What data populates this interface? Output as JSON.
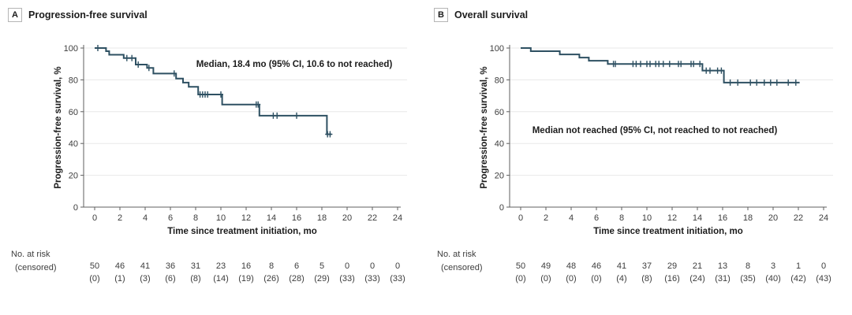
{
  "colors": {
    "curve": "#2e5062",
    "grid": "#e8e8e8",
    "axis": "#5f5f5f",
    "text": "#3d3d3d",
    "title": "#1c1c1c",
    "panel_box_border": "#b5b5b5",
    "background": "#ffffff"
  },
  "chart_data": [
    {
      "type": "line",
      "subtype": "kaplan-meier-step",
      "panel_label": "A",
      "title": "Progression-free survival",
      "annotation": "Median, 18.4 mo (95% CI, 10.6 to not reached)",
      "xlabel": "Time since treatment initiation, mo",
      "ylabel": "Progression-free survival, %",
      "xlim": [
        0,
        24
      ],
      "ylim": [
        0,
        100
      ],
      "xticks": [
        0,
        2,
        4,
        6,
        8,
        10,
        12,
        14,
        16,
        18,
        20,
        22,
        24
      ],
      "yticks": [
        0,
        20,
        40,
        60,
        80,
        100
      ],
      "grid": "horizontal",
      "legend_position": "none",
      "steps": [
        [
          0,
          100
        ],
        [
          0.9,
          98
        ],
        [
          1.15,
          95.8
        ],
        [
          2.3,
          93.7
        ],
        [
          3.25,
          89.6
        ],
        [
          4.15,
          87.5
        ],
        [
          4.65,
          84
        ],
        [
          6.45,
          80.8
        ],
        [
          7.0,
          78.3
        ],
        [
          7.45,
          75.6
        ],
        [
          8.2,
          70.8
        ],
        [
          10.1,
          64.5
        ],
        [
          13.05,
          57.5
        ],
        [
          18.4,
          45.8
        ]
      ],
      "end_time": 18.75,
      "censors": [
        [
          0.25,
          100
        ],
        [
          2.55,
          93.7
        ],
        [
          2.95,
          93.7
        ],
        [
          3.45,
          89.6
        ],
        [
          4.3,
          87.5
        ],
        [
          6.3,
          84
        ],
        [
          8.35,
          70.8
        ],
        [
          8.55,
          70.8
        ],
        [
          8.75,
          70.8
        ],
        [
          8.95,
          70.8
        ],
        [
          10.0,
          70.8
        ],
        [
          12.8,
          64.5
        ],
        [
          12.95,
          64.5
        ],
        [
          14.15,
          57.5
        ],
        [
          14.45,
          57.5
        ],
        [
          16.0,
          57.5
        ],
        [
          18.45,
          45.8
        ],
        [
          18.65,
          45.8
        ]
      ],
      "risk": {
        "label_line1": "No. at risk",
        "label_line2": "(censored)",
        "times": [
          0,
          2,
          4,
          6,
          8,
          10,
          12,
          14,
          16,
          18,
          20,
          22,
          24
        ],
        "at_risk": [
          50,
          46,
          41,
          36,
          31,
          23,
          16,
          8,
          6,
          5,
          0,
          0,
          0
        ],
        "censored": [
          0,
          1,
          3,
          6,
          8,
          14,
          19,
          26,
          28,
          29,
          33,
          33,
          33
        ]
      }
    },
    {
      "type": "line",
      "subtype": "kaplan-meier-step",
      "panel_label": "B",
      "title": "Overall survival",
      "annotation": "Median not reached (95% CI, not reached to not reached)",
      "xlabel": "Time since treatment initiation, mo",
      "ylabel": "Progression-free survival, %",
      "xlim": [
        0,
        24
      ],
      "ylim": [
        0,
        100
      ],
      "xticks": [
        0,
        2,
        4,
        6,
        8,
        10,
        12,
        14,
        16,
        18,
        20,
        22,
        24
      ],
      "yticks": [
        0,
        20,
        40,
        60,
        80,
        100
      ],
      "grid": "horizontal",
      "legend_position": "none",
      "steps": [
        [
          0,
          100
        ],
        [
          0.8,
          98
        ],
        [
          3.1,
          96
        ],
        [
          4.65,
          94
        ],
        [
          5.4,
          92
        ],
        [
          6.9,
          90
        ],
        [
          14.4,
          85.8
        ],
        [
          16.1,
          78.3
        ]
      ],
      "end_time": 22.1,
      "censors": [
        [
          7.35,
          90
        ],
        [
          7.5,
          90
        ],
        [
          8.9,
          90
        ],
        [
          9.15,
          90
        ],
        [
          9.5,
          90
        ],
        [
          10.0,
          90
        ],
        [
          10.25,
          90
        ],
        [
          10.7,
          90
        ],
        [
          10.95,
          90
        ],
        [
          11.3,
          90
        ],
        [
          11.8,
          90
        ],
        [
          12.5,
          90
        ],
        [
          12.7,
          90
        ],
        [
          13.5,
          90
        ],
        [
          13.7,
          90
        ],
        [
          14.2,
          90
        ],
        [
          14.7,
          85.8
        ],
        [
          15.0,
          85.8
        ],
        [
          15.6,
          85.8
        ],
        [
          15.9,
          85.8
        ],
        [
          16.6,
          78.3
        ],
        [
          17.2,
          78.3
        ],
        [
          18.2,
          78.3
        ],
        [
          18.7,
          78.3
        ],
        [
          19.3,
          78.3
        ],
        [
          19.8,
          78.3
        ],
        [
          20.3,
          78.3
        ],
        [
          21.2,
          78.3
        ],
        [
          21.8,
          78.3
        ]
      ],
      "risk": {
        "label_line1": "No. at risk",
        "label_line2": "(censored)",
        "times": [
          0,
          2,
          4,
          6,
          8,
          10,
          12,
          14,
          16,
          18,
          20,
          22,
          24
        ],
        "at_risk": [
          50,
          49,
          48,
          46,
          41,
          37,
          29,
          21,
          13,
          8,
          3,
          1,
          0
        ],
        "censored": [
          0,
          0,
          0,
          0,
          4,
          8,
          16,
          24,
          31,
          35,
          40,
          42,
          43
        ]
      }
    }
  ]
}
